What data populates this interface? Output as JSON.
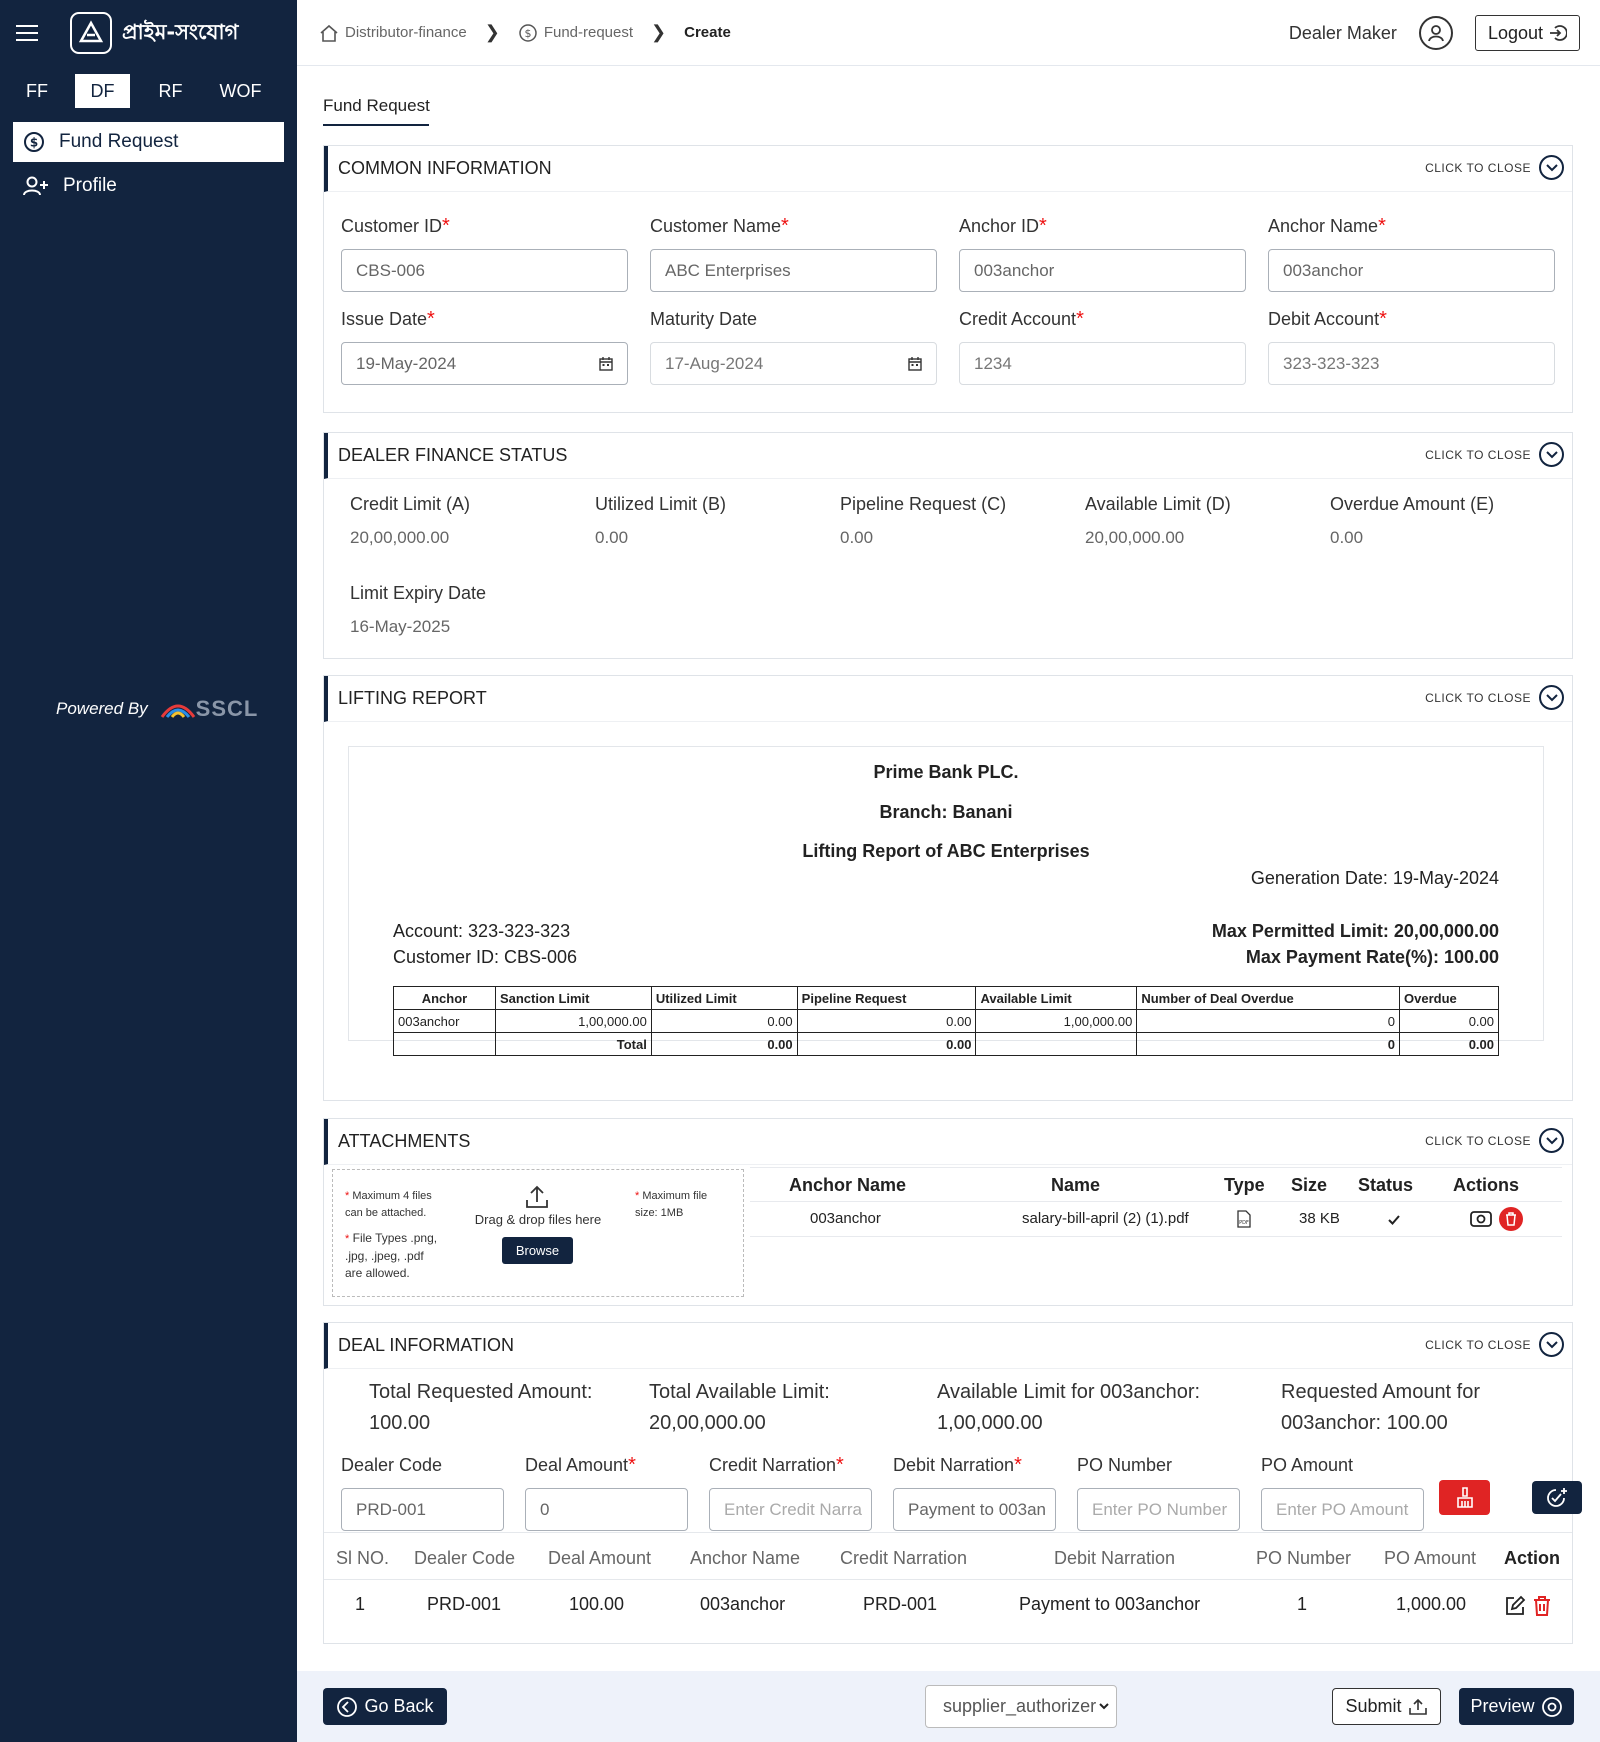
{
  "app": {
    "title": "প্রাইম-সংযোগ",
    "powered_by": "Powered By",
    "powered_logo": "SSCL"
  },
  "sidebar": {
    "product_tabs": [
      "FF",
      "DF",
      "RF",
      "WOF"
    ],
    "active_tab": "DF",
    "items": [
      {
        "label": "Fund Request",
        "icon": "dollar-circle-icon",
        "active": true
      },
      {
        "label": "Profile",
        "icon": "user-plus-icon",
        "active": false
      }
    ]
  },
  "breadcrumb": [
    "Distributor-finance",
    "Fund-request",
    "Create"
  ],
  "user": {
    "name": "Dealer Maker",
    "logout": "Logout"
  },
  "page_tab": "Fund Request",
  "close_label": "CLICK TO CLOSE",
  "common": {
    "title": "COMMON INFORMATION",
    "fields": [
      {
        "label": "Customer ID",
        "required": "*",
        "value": "CBS-006"
      },
      {
        "label": "Customer Name",
        "required": "*",
        "value": "ABC Enterprises"
      },
      {
        "label": "Anchor ID",
        "required": "*",
        "value": "003anchor"
      },
      {
        "label": "Anchor Name",
        "required": "*",
        "value": "003anchor"
      },
      {
        "label": "Issue Date",
        "required": "*",
        "value": "19-May-2024"
      },
      {
        "label": "Maturity Date",
        "required": "",
        "value": "17-Aug-2024"
      },
      {
        "label": "Credit Account",
        "required": "*",
        "value": "1234"
      },
      {
        "label": "Debit Account",
        "required": "*",
        "value": "323-323-323"
      }
    ]
  },
  "status": {
    "title": "DEALER FINANCE STATUS",
    "items": [
      {
        "label": "Credit Limit (A)",
        "value": "20,00,000.00"
      },
      {
        "label": "Utilized Limit (B)",
        "value": "0.00"
      },
      {
        "label": "Pipeline Request (C)",
        "value": "0.00"
      },
      {
        "label": "Available Limit (D)",
        "value": "20,00,000.00"
      },
      {
        "label": "Overdue Amount (E)",
        "value": "0.00"
      },
      {
        "label": "Limit Expiry Date",
        "value": "16-May-2025"
      }
    ]
  },
  "lifting": {
    "title": "LIFTING REPORT",
    "bank": "Prime Bank PLC.",
    "branch": "Branch: Banani",
    "report_title": "Lifting Report of ABC Enterprises",
    "generation": "Generation Date: 19-May-2024",
    "account": "Account: 323-323-323",
    "customer": "Customer ID: CBS-006",
    "max_limit": "Max Permitted Limit: 20,00,000.00",
    "max_rate": "Max Payment Rate(%): 100.00",
    "headers": [
      "Anchor",
      "Sanction Limit",
      "Utilized Limit",
      "Pipeline Request",
      "Available Limit",
      "Number of Deal Overdue",
      "Overdue"
    ],
    "row": [
      "003anchor",
      "1,00,000.00",
      "0.00",
      "0.00",
      "1,00,000.00",
      "0",
      "0.00"
    ],
    "total": [
      "",
      "Total",
      "0.00",
      "0.00",
      "",
      "0",
      "0.00"
    ]
  },
  "attachments": {
    "title": "ATTACHMENTS",
    "note1": "Maximum 4 files can be attached.",
    "note2": "File Types .png, .jpg, .jpeg, .pdf are allowed.",
    "note3": "Maximum file size: 1MB",
    "drag": "Drag & drop files here",
    "browse": "Browse",
    "headers": [
      "Anchor Name",
      "Name",
      "Type",
      "Size",
      "Status",
      "Actions"
    ],
    "row": {
      "anchor": "003anchor",
      "name": "salary-bill-april (2) (1).pdf",
      "type_icon": "pdf-icon",
      "size": "38 KB",
      "status_icon": "check-icon"
    }
  },
  "deal": {
    "title": "DEAL INFORMATION",
    "summary": [
      {
        "label": "Total Requested Amount:",
        "value": "100.00"
      },
      {
        "label": "Total Available Limit:",
        "value": "20,00,000.00"
      },
      {
        "label": "Available Limit for 003anchor:",
        "value": "1,00,000.00"
      },
      {
        "label": "Requested Amount for",
        "value": "003anchor: 100.00"
      }
    ],
    "fields": [
      {
        "label": "Dealer Code",
        "required": "",
        "value": "PRD-001",
        "placeholder": ""
      },
      {
        "label": "Deal Amount",
        "required": "*",
        "value": "0",
        "placeholder": ""
      },
      {
        "label": "Credit Narration",
        "required": "*",
        "value": "",
        "placeholder": "Enter Credit Narra"
      },
      {
        "label": "Debit Narration",
        "required": "*",
        "value": "Payment to 003an",
        "placeholder": ""
      },
      {
        "label": "PO Number",
        "required": "",
        "value": "",
        "placeholder": "Enter PO Number"
      },
      {
        "label": "PO Amount",
        "required": "",
        "value": "",
        "placeholder": "Enter PO Amount"
      }
    ],
    "headers": [
      "Sl NO.",
      "Dealer Code",
      "Deal Amount",
      "Anchor Name",
      "Credit Narration",
      "Debit Narration",
      "PO Number",
      "PO Amount",
      "Action"
    ],
    "row": [
      "1",
      "PRD-001",
      "100.00",
      "003anchor",
      "PRD-001",
      "Payment to 003anchor",
      "1",
      "1,000.00"
    ]
  },
  "footer": {
    "go_back": "Go Back",
    "select_value": "supplier_authorizer",
    "submit": "Submit",
    "preview": "Preview"
  },
  "colors": {
    "sidebar": "#12243f",
    "accent": "#12243f",
    "danger": "#e02424"
  }
}
